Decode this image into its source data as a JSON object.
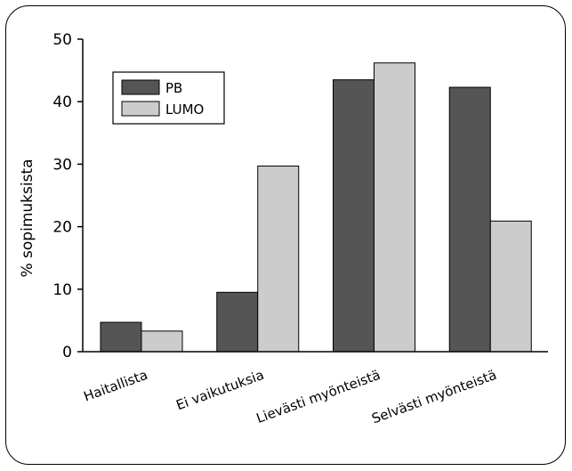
{
  "chart_data": {
    "type": "bar",
    "title": "",
    "xlabel": "",
    "ylabel": "% sopimuksista",
    "ylim": [
      0,
      50
    ],
    "yticks": [
      0,
      10,
      20,
      30,
      40,
      50
    ],
    "grid": false,
    "legend_position": "top-left",
    "categories": [
      "Haitallista",
      "Ei vaikutuksia",
      "Lievästi myönteistä",
      "Selvästi myönteistä"
    ],
    "series": [
      {
        "name": "PB",
        "color": "#555555",
        "values": [
          4.7,
          9.5,
          43.5,
          42.3
        ]
      },
      {
        "name": "LUMO",
        "color": "#cccccc",
        "values": [
          3.3,
          29.7,
          46.2,
          20.9
        ]
      }
    ]
  }
}
